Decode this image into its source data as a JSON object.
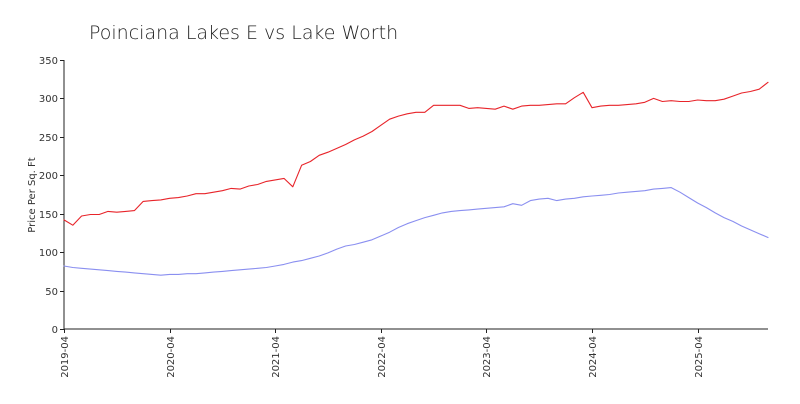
{
  "chart_data": {
    "type": "line",
    "title": "Poinciana Lakes E vs Lake Worth",
    "xlabel": "",
    "ylabel": "Price Per Sq. Ft",
    "ylim": [
      0,
      350
    ],
    "yticks": [
      0,
      50,
      100,
      150,
      200,
      250,
      300,
      350
    ],
    "xlim": [
      "2019-04",
      "2025-12"
    ],
    "xticks": [
      "2019-04",
      "2020-04",
      "2021-04",
      "2022-04",
      "2023-04",
      "2024-04",
      "2025-04"
    ],
    "grid": false,
    "legend": "none",
    "x": [
      "2019-04",
      "2019-05",
      "2019-06",
      "2019-07",
      "2019-08",
      "2019-09",
      "2019-10",
      "2019-11",
      "2019-12",
      "2020-01",
      "2020-02",
      "2020-03",
      "2020-04",
      "2020-05",
      "2020-06",
      "2020-07",
      "2020-08",
      "2020-09",
      "2020-10",
      "2020-11",
      "2020-12",
      "2021-01",
      "2021-02",
      "2021-03",
      "2021-04",
      "2021-05",
      "2021-06",
      "2021-07",
      "2021-08",
      "2021-09",
      "2021-10",
      "2021-11",
      "2021-12",
      "2022-01",
      "2022-02",
      "2022-03",
      "2022-04",
      "2022-05",
      "2022-06",
      "2022-07",
      "2022-08",
      "2022-09",
      "2022-10",
      "2022-11",
      "2022-12",
      "2023-01",
      "2023-02",
      "2023-03",
      "2023-04",
      "2023-05",
      "2023-06",
      "2023-07",
      "2023-08",
      "2023-09",
      "2023-10",
      "2023-11",
      "2023-12",
      "2024-01",
      "2024-02",
      "2024-03",
      "2024-04",
      "2024-05",
      "2024-06",
      "2024-07",
      "2024-08",
      "2024-09",
      "2024-10",
      "2024-11",
      "2024-12",
      "2025-01",
      "2025-02",
      "2025-03",
      "2025-04",
      "2025-05",
      "2025-06",
      "2025-07",
      "2025-08",
      "2025-09",
      "2025-10",
      "2025-11",
      "2025-12"
    ],
    "series": [
      {
        "color": "#e8242a",
        "values": [
          142,
          135,
          147,
          149,
          149,
          153,
          152,
          153,
          154,
          166,
          167,
          168,
          170,
          171,
          173,
          176,
          176,
          178,
          180,
          183,
          182,
          186,
          188,
          192,
          194,
          196,
          185,
          213,
          218,
          226,
          230,
          235,
          240,
          246,
          251,
          257,
          265,
          273,
          277,
          280,
          282,
          282,
          291,
          291,
          291,
          291,
          287,
          288,
          287,
          286,
          290,
          286,
          290,
          291,
          291,
          292,
          293,
          293,
          301,
          308,
          288,
          290,
          291,
          291,
          292,
          293,
          295,
          300,
          296,
          297,
          296,
          296,
          298,
          297,
          297,
          299,
          303,
          307,
          309,
          312,
          321
        ]
      },
      {
        "color": "#8a8ff0",
        "values": [
          82,
          80,
          79,
          78,
          77,
          76,
          75,
          74,
          73,
          72,
          71,
          70,
          71,
          71,
          72,
          72,
          73,
          74,
          75,
          76,
          77,
          78,
          79,
          80,
          82,
          84,
          87,
          89,
          92,
          95,
          99,
          104,
          108,
          110,
          113,
          116,
          121,
          126,
          132,
          137,
          141,
          145,
          148,
          151,
          153,
          154,
          155,
          156,
          157,
          158,
          159,
          163,
          161,
          167,
          169,
          170,
          167,
          169,
          170,
          172,
          173,
          174,
          175,
          177,
          178,
          179,
          180,
          182,
          183,
          184,
          178,
          171,
          164,
          158,
          151,
          145,
          140,
          134,
          129,
          124,
          119
        ]
      }
    ]
  }
}
